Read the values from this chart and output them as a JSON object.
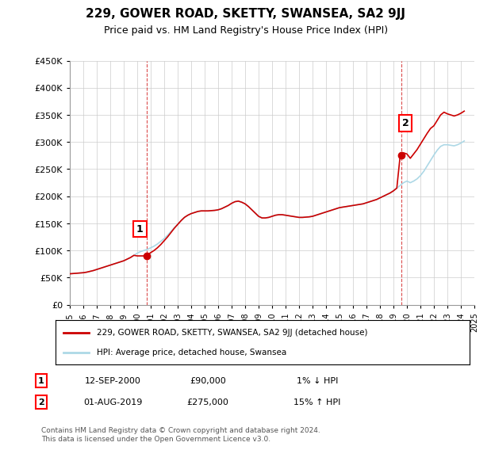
{
  "title": "229, GOWER ROAD, SKETTY, SWANSEA, SA2 9JJ",
  "subtitle": "Price paid vs. HM Land Registry's House Price Index (HPI)",
  "ylabel_ticks": [
    "£0",
    "£50K",
    "£100K",
    "£150K",
    "£200K",
    "£250K",
    "£300K",
    "£350K",
    "£400K",
    "£450K"
  ],
  "ytick_values": [
    0,
    50000,
    100000,
    150000,
    200000,
    250000,
    300000,
    350000,
    400000,
    450000
  ],
  "xlim": [
    1995,
    2025
  ],
  "ylim": [
    0,
    450000
  ],
  "background_color": "#ffffff",
  "grid_color": "#cccccc",
  "title_fontsize": 11,
  "subtitle_fontsize": 9.5,
  "hpi_color": "#add8e6",
  "price_color": "#cc0000",
  "legend_label_price": "229, GOWER ROAD, SKETTY, SWANSEA, SA2 9JJ (detached house)",
  "legend_label_hpi": "HPI: Average price, detached house, Swansea",
  "transaction1_label": "1",
  "transaction1_date": "12-SEP-2000",
  "transaction1_price": "£90,000",
  "transaction1_hpi": "1% ↓ HPI",
  "transaction1_x": 2000.7,
  "transaction1_y": 90000,
  "transaction2_label": "2",
  "transaction2_date": "01-AUG-2019",
  "transaction2_price": "£275,000",
  "transaction2_hpi": "15% ↑ HPI",
  "transaction2_x": 2019.58,
  "transaction2_y": 275000,
  "footer": "Contains HM Land Registry data © Crown copyright and database right 2024.\nThis data is licensed under the Open Government Licence v3.0.",
  "hpi_x": [
    1995.0,
    1995.25,
    1995.5,
    1995.75,
    1996.0,
    1996.25,
    1996.5,
    1996.75,
    1997.0,
    1997.25,
    1997.5,
    1997.75,
    1998.0,
    1998.25,
    1998.5,
    1998.75,
    1999.0,
    1999.25,
    1999.5,
    1999.75,
    2000.0,
    2000.25,
    2000.5,
    2000.75,
    2001.0,
    2001.25,
    2001.5,
    2001.75,
    2002.0,
    2002.25,
    2002.5,
    2002.75,
    2003.0,
    2003.25,
    2003.5,
    2003.75,
    2004.0,
    2004.25,
    2004.5,
    2004.75,
    2005.0,
    2005.25,
    2005.5,
    2005.75,
    2006.0,
    2006.25,
    2006.5,
    2006.75,
    2007.0,
    2007.25,
    2007.5,
    2007.75,
    2008.0,
    2008.25,
    2008.5,
    2008.75,
    2009.0,
    2009.25,
    2009.5,
    2009.75,
    2010.0,
    2010.25,
    2010.5,
    2010.75,
    2011.0,
    2011.25,
    2011.5,
    2011.75,
    2012.0,
    2012.25,
    2012.5,
    2012.75,
    2013.0,
    2013.25,
    2013.5,
    2013.75,
    2014.0,
    2014.25,
    2014.5,
    2014.75,
    2015.0,
    2015.25,
    2015.5,
    2015.75,
    2016.0,
    2016.25,
    2016.5,
    2016.75,
    2017.0,
    2017.25,
    2017.5,
    2017.75,
    2018.0,
    2018.25,
    2018.5,
    2018.75,
    2019.0,
    2019.25,
    2019.5,
    2019.75,
    2020.0,
    2020.25,
    2020.5,
    2020.75,
    2021.0,
    2021.25,
    2021.5,
    2021.75,
    2022.0,
    2022.25,
    2022.5,
    2022.75,
    2023.0,
    2023.25,
    2023.5,
    2023.75,
    2024.0,
    2024.25
  ],
  "hpi_y": [
    57000,
    57500,
    58000,
    58500,
    59000,
    60000,
    61500,
    63000,
    65000,
    67000,
    69000,
    71000,
    73000,
    75000,
    77000,
    79000,
    81000,
    84000,
    87000,
    91000,
    95000,
    98000,
    100000,
    102000,
    105000,
    108000,
    112000,
    117000,
    122000,
    128000,
    135000,
    142000,
    148000,
    155000,
    161000,
    165000,
    168000,
    170000,
    172000,
    173000,
    173000,
    173000,
    173500,
    174000,
    175000,
    177000,
    180000,
    183000,
    187000,
    190000,
    191000,
    189000,
    186000,
    181000,
    175000,
    169000,
    163000,
    160000,
    160000,
    161000,
    163000,
    165000,
    166000,
    166000,
    165000,
    164000,
    163000,
    162000,
    161000,
    161000,
    161500,
    162000,
    163000,
    165000,
    167000,
    169000,
    171000,
    173000,
    175000,
    177000,
    179000,
    180000,
    181000,
    182000,
    183000,
    184000,
    185000,
    186000,
    188000,
    190000,
    192000,
    194000,
    197000,
    200000,
    203000,
    206000,
    210000,
    215000,
    220000,
    225000,
    228000,
    225000,
    228000,
    232000,
    238000,
    246000,
    256000,
    266000,
    276000,
    285000,
    292000,
    295000,
    295000,
    294000,
    293000,
    295000,
    298000,
    302000
  ],
  "price_x": [
    1995.0,
    1995.25,
    1995.5,
    1995.75,
    1996.0,
    1996.25,
    1996.5,
    1996.75,
    1997.0,
    1997.25,
    1997.5,
    1997.75,
    1998.0,
    1998.25,
    1998.5,
    1998.75,
    1999.0,
    1999.25,
    1999.5,
    1999.75,
    2000.0,
    2000.25,
    2000.5,
    2000.75,
    2001.0,
    2001.25,
    2001.5,
    2001.75,
    2002.0,
    2002.25,
    2002.5,
    2002.75,
    2003.0,
    2003.25,
    2003.5,
    2003.75,
    2004.0,
    2004.25,
    2004.5,
    2004.75,
    2005.0,
    2005.25,
    2005.5,
    2005.75,
    2006.0,
    2006.25,
    2006.5,
    2006.75,
    2007.0,
    2007.25,
    2007.5,
    2007.75,
    2008.0,
    2008.25,
    2008.5,
    2008.75,
    2009.0,
    2009.25,
    2009.5,
    2009.75,
    2010.0,
    2010.25,
    2010.5,
    2010.75,
    2011.0,
    2011.25,
    2011.5,
    2011.75,
    2012.0,
    2012.25,
    2012.5,
    2012.75,
    2013.0,
    2013.25,
    2013.5,
    2013.75,
    2014.0,
    2014.25,
    2014.5,
    2014.75,
    2015.0,
    2015.25,
    2015.5,
    2015.75,
    2016.0,
    2016.25,
    2016.5,
    2016.75,
    2017.0,
    2017.25,
    2017.5,
    2017.75,
    2018.0,
    2018.25,
    2018.5,
    2018.75,
    2019.0,
    2019.25,
    2019.5,
    2019.75,
    2020.0,
    2020.25,
    2020.5,
    2020.75,
    2021.0,
    2021.25,
    2021.5,
    2021.75,
    2022.0,
    2022.25,
    2022.5,
    2022.75,
    2023.0,
    2023.25,
    2023.5,
    2023.75,
    2024.0,
    2024.25
  ],
  "price_y": [
    57000,
    57500,
    58000,
    58500,
    59000,
    60000,
    61500,
    63000,
    65000,
    67000,
    69000,
    71000,
    73000,
    75000,
    77000,
    79000,
    81000,
    84000,
    87000,
    91000,
    90000,
    90000,
    90000,
    92000,
    96000,
    100000,
    105000,
    111000,
    118000,
    125000,
    133000,
    141000,
    148000,
    155000,
    161000,
    165000,
    168000,
    170000,
    172000,
    173000,
    173000,
    173000,
    173500,
    174000,
    175000,
    177000,
    180000,
    183000,
    187000,
    190000,
    191000,
    189000,
    186000,
    181000,
    175000,
    169000,
    163000,
    160000,
    160000,
    161000,
    163000,
    165000,
    166000,
    166000,
    165000,
    164000,
    163000,
    162000,
    161000,
    161000,
    161500,
    162000,
    163000,
    165000,
    167000,
    169000,
    171000,
    173000,
    175000,
    177000,
    179000,
    180000,
    181000,
    182000,
    183000,
    184000,
    185000,
    186000,
    188000,
    190000,
    192000,
    194000,
    197000,
    200000,
    203000,
    206000,
    210000,
    215000,
    275000,
    280000,
    278000,
    270000,
    278000,
    286000,
    296000,
    306000,
    316000,
    325000,
    330000,
    340000,
    350000,
    355000,
    352000,
    350000,
    348000,
    350000,
    353000,
    357000
  ]
}
